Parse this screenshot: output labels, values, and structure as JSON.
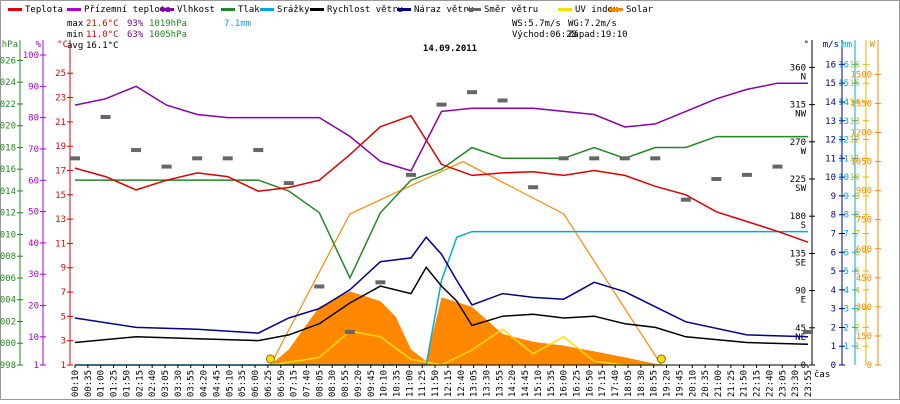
{
  "chart_data": {
    "type": "line",
    "title": "14.09.2011",
    "xlabel": "čas",
    "legend": [
      {
        "name": "Teplota",
        "color": "#dd0000"
      },
      {
        "name": "Přízemní teplota",
        "color": "#aa00dd"
      },
      {
        "name": "Vlhkost",
        "color": "#8800aa"
      },
      {
        "name": "Tlak",
        "color": "#228822"
      },
      {
        "name": "Srážky",
        "color": "#00aadd"
      },
      {
        "name": "Rychlost větru",
        "color": "#000000"
      },
      {
        "name": "Náraz větru",
        "color": "#000088"
      },
      {
        "name": "Směr větru",
        "color": "#666666"
      },
      {
        "name": "UV index",
        "color": "#ffdd00"
      },
      {
        "name": "Solar",
        "color": "#ff8800"
      }
    ],
    "stats": {
      "max_label": "max",
      "max_temp": "21.6°C",
      "max_hum": "93%",
      "max_pres": "1019hPa",
      "rain_total": "7.1mm",
      "min_label": "min",
      "min_temp": "11.0°C",
      "min_hum": "63%",
      "min_pres": "1005hPa",
      "avg_label": "avg",
      "avg_temp": "16.1°C",
      "ws": "WS:5.7m/s",
      "wg": "WG:7.2m/s",
      "sunrise": "Východ:06:28",
      "sunset": "Západ:19:10"
    },
    "axes": {
      "hpa": {
        "unit": "hPa",
        "ticks": [
          998,
          1000,
          1002,
          1004,
          1006,
          1008,
          1010,
          1012,
          1014,
          1016,
          1018,
          1020,
          1022,
          1024,
          1026
        ]
      },
      "pct": {
        "unit": "%",
        "ticks": [
          1,
          10,
          20,
          30,
          40,
          50,
          60,
          70,
          80,
          90,
          100
        ]
      },
      "temp": {
        "unit": "°C",
        "ticks": [
          1,
          3,
          5,
          7,
          9,
          11,
          13,
          15,
          17,
          19,
          21,
          23,
          25
        ]
      },
      "deg": {
        "unit": "°",
        "ticks": [
          "0",
          "45",
          "90",
          "135",
          "180",
          "225",
          "270",
          "315",
          "360"
        ],
        "dirs": [
          "",
          "NE",
          "E",
          "SE",
          "S",
          "SW",
          "W",
          "NW",
          "N"
        ]
      },
      "ms": {
        "unit": "m/s",
        "ticks": [
          0,
          1,
          2,
          3,
          4,
          5,
          6,
          7,
          8,
          9,
          10,
          11,
          12,
          13,
          14,
          15,
          16
        ]
      },
      "mm": {
        "unit": "mm",
        "ticks": [
          1,
          2,
          3,
          4,
          5,
          6,
          7,
          8,
          9,
          10,
          11,
          12,
          13,
          14,
          15,
          16
        ]
      },
      "uv": {
        "unit": "",
        "ticks": [
          1,
          2,
          3,
          4,
          5,
          6,
          7,
          8,
          9,
          10,
          11,
          12,
          13,
          14,
          15,
          16
        ]
      },
      "w": {
        "unit": "W",
        "ticks": [
          0,
          150,
          300,
          450,
          600,
          750,
          900,
          1050,
          1200,
          1350,
          1500
        ]
      }
    },
    "x_ticks": [
      "00:10",
      "00:35",
      "01:00",
      "01:25",
      "01:50",
      "02:15",
      "02:40",
      "03:05",
      "03:30",
      "03:55",
      "04:20",
      "04:45",
      "05:10",
      "05:35",
      "06:00",
      "06:25",
      "06:50",
      "07:15",
      "07:40",
      "08:05",
      "08:30",
      "08:55",
      "09:20",
      "09:45",
      "10:10",
      "10:35",
      "11:00",
      "11:25",
      "11:50",
      "12:15",
      "12:40",
      "13:05",
      "13:30",
      "13:55",
      "14:20",
      "14:45",
      "15:10",
      "15:35",
      "16:00",
      "16:25",
      "16:50",
      "17:15",
      "17:40",
      "18:05",
      "18:30",
      "18:55",
      "19:20",
      "19:45",
      "20:10",
      "20:35",
      "21:00",
      "21:25",
      "21:50",
      "22:15",
      "22:40",
      "23:05",
      "23:30",
      "23:55"
    ],
    "x_range_hours": [
      0,
      24
    ],
    "series": {
      "temperature": {
        "unit": "°C",
        "x": [
          0,
          1,
          2,
          3,
          4,
          5,
          6,
          7,
          8,
          9,
          10,
          11,
          12,
          13,
          14,
          15,
          16,
          17,
          18,
          19,
          20,
          21,
          22,
          23,
          24
        ],
        "y": [
          17.2,
          16.5,
          15.4,
          16.2,
          16.8,
          16.5,
          15.3,
          15.6,
          16.2,
          18.3,
          20.6,
          21.5,
          17.5,
          16.6,
          16.8,
          16.9,
          16.6,
          17.0,
          16.6,
          15.7,
          15.0,
          13.6,
          12.8,
          12.0,
          11.1
        ]
      },
      "humidity": {
        "unit": "%",
        "x": [
          0,
          1,
          2,
          3,
          4,
          5,
          6,
          7,
          8,
          9,
          10,
          11,
          12,
          13,
          14,
          15,
          16,
          17,
          18,
          19,
          20,
          21,
          22,
          23,
          24
        ],
        "y": [
          84,
          86,
          90,
          84,
          81,
          80,
          80,
          80,
          80,
          74,
          66,
          63,
          82,
          83,
          83,
          83,
          82,
          81,
          77,
          78,
          82,
          86,
          89,
          91,
          91
        ]
      },
      "pressure": {
        "unit": "hPa",
        "x": [
          0,
          1,
          2,
          3,
          4,
          5,
          6,
          7,
          8,
          9,
          10,
          11,
          12,
          13,
          14,
          15,
          16,
          17,
          18,
          19,
          20,
          21,
          22,
          23,
          24
        ],
        "y": [
          1015,
          1015,
          1015,
          1015,
          1015,
          1015,
          1015,
          1014,
          1012,
          1006,
          1012,
          1015,
          1016,
          1018,
          1017,
          1017,
          1017,
          1018,
          1017,
          1018,
          1018,
          1019,
          1019,
          1019,
          1019
        ]
      },
      "rain_cumulative": {
        "unit": "mm",
        "x": [
          0,
          11.5,
          12.0,
          12.5,
          13.0,
          14.0,
          18.0,
          24.0
        ],
        "y": [
          0,
          0,
          4.5,
          6.8,
          7.1,
          7.1,
          7.1,
          7.1
        ]
      },
      "wind_speed": {
        "unit": "m/s",
        "x": [
          0,
          2,
          4,
          6,
          7,
          8,
          9,
          10,
          11,
          11.5,
          12,
          12.5,
          13,
          14,
          15,
          16,
          17,
          18,
          19,
          20,
          22,
          24
        ],
        "y": [
          1.2,
          1.5,
          1.4,
          1.3,
          1.6,
          2.2,
          3.3,
          4.2,
          3.8,
          5.2,
          4.2,
          3.4,
          2.1,
          2.6,
          2.7,
          2.5,
          2.6,
          2.2,
          2.0,
          1.5,
          1.2,
          1.1
        ]
      },
      "wind_gust": {
        "unit": "m/s",
        "x": [
          0,
          2,
          4,
          6,
          7,
          8,
          9,
          10,
          11,
          11.5,
          12,
          12.5,
          13,
          14,
          15,
          16,
          17,
          18,
          19,
          20,
          22,
          24
        ],
        "y": [
          2.5,
          2.0,
          1.9,
          1.7,
          2.5,
          3.0,
          4.0,
          5.5,
          5.7,
          6.8,
          5.9,
          4.5,
          3.2,
          3.8,
          3.6,
          3.5,
          4.4,
          3.9,
          3.1,
          2.3,
          1.6,
          1.5
        ]
      },
      "wind_direction": {
        "unit": "°",
        "x": [
          0,
          1,
          2,
          3,
          4,
          5,
          6,
          7,
          8,
          9,
          10,
          11,
          12,
          13,
          14,
          15,
          16,
          17,
          18,
          19,
          20,
          21,
          22,
          23,
          24
        ],
        "y": [
          250,
          300,
          260,
          240,
          250,
          250,
          260,
          220,
          95,
          40,
          100,
          230,
          315,
          330,
          320,
          215,
          250,
          250,
          250,
          250,
          200,
          225,
          230,
          240,
          40
        ]
      },
      "solar": {
        "unit": "W",
        "x": [
          6.4,
          7,
          8,
          9,
          10,
          10.5,
          11,
          11.5,
          12,
          13,
          14,
          15,
          16,
          17,
          18,
          19.2
        ],
        "y": [
          0,
          80,
          300,
          380,
          330,
          250,
          80,
          20,
          350,
          300,
          160,
          120,
          100,
          70,
          40,
          0
        ]
      },
      "solar_max": {
        "unit": "W",
        "x": [
          6.4,
          9,
          12.7,
          16,
          19.2
        ],
        "y": [
          0,
          780,
          1050,
          780,
          0
        ]
      },
      "uv_index": {
        "unit": "",
        "x": [
          6.4,
          8,
          9,
          10,
          11,
          12,
          13,
          14,
          15,
          16,
          17,
          18,
          19.2
        ],
        "y": [
          0,
          0.4,
          1.8,
          1.5,
          0.3,
          0,
          0.8,
          1.9,
          0.6,
          1.5,
          0.2,
          0,
          0
        ]
      }
    },
    "grid": false
  }
}
